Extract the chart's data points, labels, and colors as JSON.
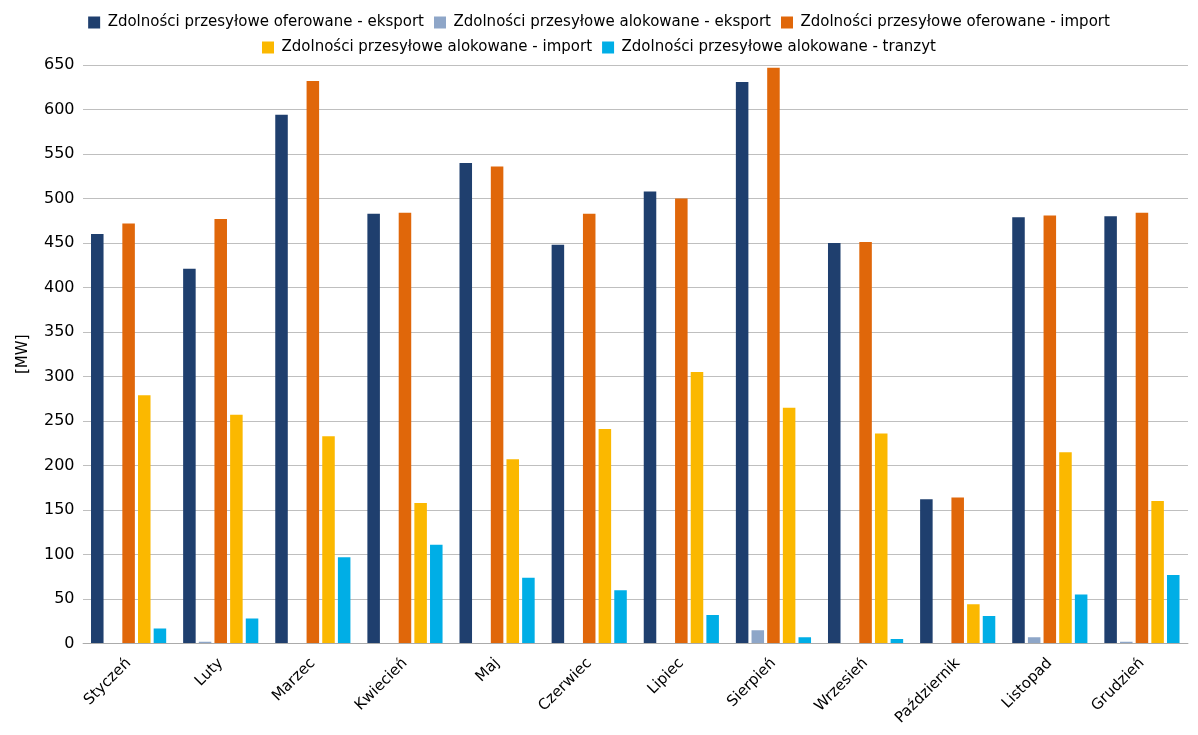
{
  "chart_data": {
    "type": "bar",
    "ylabel": "[MW]",
    "categories": [
      "Styczeń",
      "Luty",
      "Marzec",
      "Kwiecień",
      "Maj",
      "Czerwiec",
      "Lipiec",
      "Sierpień",
      "Wrzesień",
      "Październik",
      "Listopad",
      "Grudzień"
    ],
    "series": [
      {
        "name": "Zdolności przesyłowe oferowane - eksport",
        "color": "#1f3f6e",
        "values": [
          460,
          421,
          594,
          483,
          540,
          448,
          508,
          631,
          450,
          162,
          479,
          480
        ]
      },
      {
        "name": "Zdolności przesyłowe alokowane - eksport",
        "color": "#8ea6c8",
        "values": [
          0,
          2,
          0,
          0,
          0,
          0,
          0,
          15,
          0,
          0,
          7,
          2
        ]
      },
      {
        "name": "Zdolności przesyłowe oferowane - import",
        "color": "#e0670a",
        "values": [
          472,
          477,
          632,
          484,
          536,
          483,
          500,
          647,
          451,
          164,
          481,
          484
        ]
      },
      {
        "name": "Zdolności przesyłowe alokowane - import",
        "color": "#fbb800",
        "values": [
          279,
          257,
          233,
          158,
          207,
          241,
          305,
          265,
          236,
          44,
          215,
          160
        ]
      },
      {
        "name": "Zdolności przesyłowe alokowane - tranzyt",
        "color": "#00aee6",
        "values": [
          17,
          28,
          97,
          111,
          74,
          60,
          32,
          7,
          5,
          31,
          55,
          77
        ]
      }
    ],
    "ylim": [
      0,
      650
    ],
    "yticks": [
      0,
      50,
      100,
      150,
      200,
      250,
      300,
      350,
      400,
      450,
      500,
      550,
      600,
      650
    ],
    "grid": "y",
    "legend": "top"
  }
}
